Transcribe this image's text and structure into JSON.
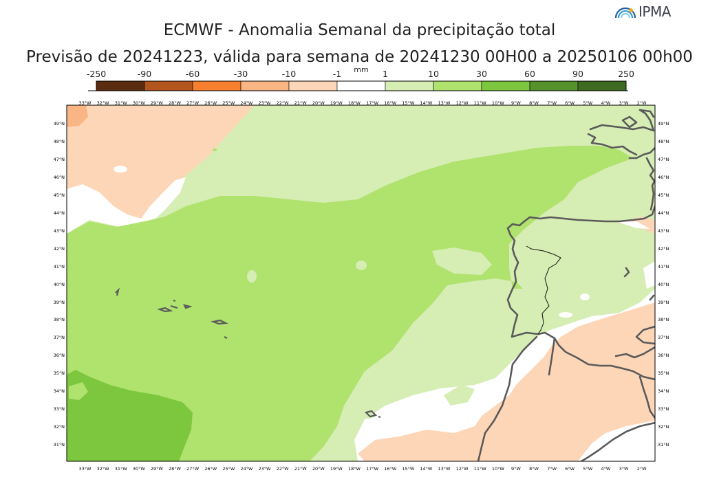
{
  "title_line1": "ECMWF - Anomalia Semanal da precipitação total",
  "title_line2": "Previsão de 20241223, válida para semana de 20241230 00H00 a 20250106 00h00",
  "logo_text": "IPMA",
  "colorbar": {
    "unit": "mm",
    "labels": [
      "-250",
      "-90",
      "-60",
      "-30",
      "-10",
      "-1",
      "1",
      "10",
      "30",
      "60",
      "90",
      "250"
    ],
    "colors": [
      "#5b2c0f",
      "#b2561d",
      "#f77f2e",
      "#f9b583",
      "#fdd6b8",
      "#ffffff",
      "#d6edb4",
      "#b0e26e",
      "#7dc73f",
      "#55922b",
      "#3f6a21"
    ]
  },
  "axes": {
    "lon_ticks": [
      "33°W",
      "32°W",
      "31°W",
      "30°W",
      "29°W",
      "28°W",
      "27°W",
      "26°W",
      "25°W",
      "24°W",
      "23°W",
      "22°W",
      "21°W",
      "20°W",
      "19°W",
      "18°W",
      "17°W",
      "16°W",
      "15°W",
      "14°W",
      "13°W",
      "12°W",
      "11°W",
      "10°W",
      "9°W",
      "8°W",
      "7°W",
      "6°W",
      "5°W",
      "4°W",
      "3°W",
      "2°W"
    ],
    "lat_ticks": [
      "49°N",
      "48°N",
      "47°N",
      "46°N",
      "45°N",
      "44°N",
      "43°N",
      "42°N",
      "41°N",
      "40°N",
      "39°N",
      "38°N",
      "37°N",
      "36°N",
      "35°N",
      "34°N",
      "33°N",
      "32°N",
      "31°N"
    ]
  },
  "map_colors": {
    "white": "#ffffff",
    "light_orange": "#fdd6b8",
    "mid_orange": "#f9b583",
    "light_green": "#d6edb4",
    "mid_green": "#b0e26e",
    "dark_green": "#7dc73f",
    "coast": "#5a5a5a"
  }
}
